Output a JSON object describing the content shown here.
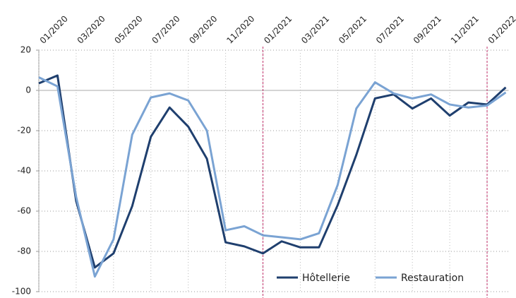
{
  "chart_data": {
    "type": "line",
    "categories": [
      "01/2020",
      null,
      "03/2020",
      null,
      "05/2020",
      null,
      "07/2020",
      null,
      "09/2020",
      null,
      "11/2020",
      null,
      "01/2021",
      null,
      "03/2021",
      null,
      "05/2021",
      null,
      "07/2021",
      null,
      "09/2021",
      null,
      "11/2021",
      null,
      "01/2022",
      null
    ],
    "series": [
      {
        "name": "Hôtellerie",
        "color": "#1f3f6e",
        "values": [
          3.5,
          7.4,
          -55,
          -88,
          -81,
          -57.5,
          -23,
          -8.5,
          -18,
          -34,
          -75.5,
          -77.5,
          -81,
          -75,
          -78,
          -78,
          -57,
          -32,
          -4,
          -2,
          -9,
          -4,
          -12.5,
          -6,
          -7,
          1.5
        ]
      },
      {
        "name": "Restauration",
        "color": "#7aa3d3",
        "values": [
          6.5,
          2,
          -53,
          -92.5,
          -74,
          -22,
          -3.5,
          -1.5,
          -5,
          -20,
          -69.5,
          -67.5,
          -72,
          -73,
          -74,
          -71,
          -47,
          -9,
          4,
          -1.5,
          -4,
          -2,
          -7,
          -8.5,
          -7.5,
          -1
        ]
      }
    ],
    "ylim": [
      -100,
      20
    ],
    "yticks": [
      -100,
      -80,
      -60,
      -40,
      -20,
      0,
      20
    ],
    "grid": true,
    "legend": "lower right"
  }
}
